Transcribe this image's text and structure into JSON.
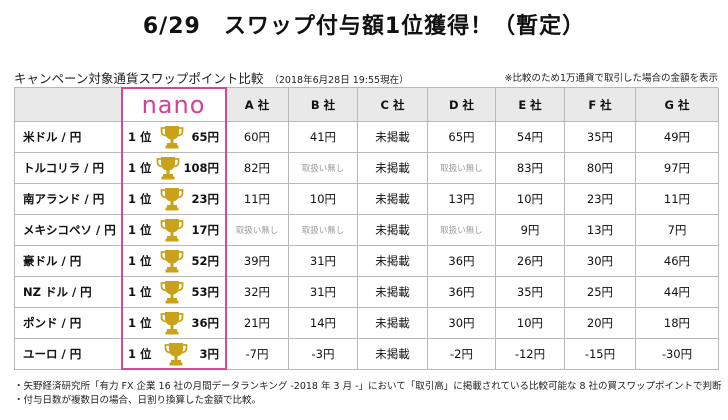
{
  "title": "6/29　スワップ付与額1位獲得！（暫定）",
  "subhead": {
    "main": "キャンペーン対象通貨スワップポイント比較",
    "date": "（2018年6月28日 19:55現在）",
    "note": "※比較のため1万通貨で取引した場合の金額を表示"
  },
  "colors": {
    "nano": "#d4418f",
    "trophy": "#c9a21a",
    "header_bg": "#e9e9e9"
  },
  "table": {
    "nano_label": "nano",
    "rank_label": "1 位",
    "companies": [
      "A 社",
      "B 社",
      "C 社",
      "D 社",
      "E 社",
      "F 社",
      "G 社"
    ],
    "rows": [
      {
        "pair": "米ドル / 円",
        "nano": "65円",
        "values": [
          "60円",
          "41円",
          "未掲載",
          "65円",
          "54円",
          "35円",
          "49円"
        ]
      },
      {
        "pair": "トルコリラ / 円",
        "nano": "108円",
        "values": [
          "82円",
          "取扱い無し",
          "未掲載",
          "取扱い無し",
          "83円",
          "80円",
          "97円"
        ]
      },
      {
        "pair": "南アランド / 円",
        "nano": "23円",
        "values": [
          "11円",
          "10円",
          "未掲載",
          "13円",
          "10円",
          "23円",
          "11円"
        ]
      },
      {
        "pair": "メキシコペソ / 円",
        "nano": "17円",
        "values": [
          "取扱い無し",
          "取扱い無し",
          "未掲載",
          "取扱い無し",
          "9円",
          "13円",
          "7円"
        ]
      },
      {
        "pair": "豪ドル / 円",
        "nano": "52円",
        "values": [
          "39円",
          "31円",
          "未掲載",
          "36円",
          "26円",
          "30円",
          "46円"
        ]
      },
      {
        "pair": "NZ ドル / 円",
        "nano": "53円",
        "values": [
          "32円",
          "31円",
          "未掲載",
          "36円",
          "35円",
          "25円",
          "44円"
        ]
      },
      {
        "pair": "ポンド / 円",
        "nano": "36円",
        "values": [
          "21円",
          "14円",
          "未掲載",
          "30円",
          "10円",
          "20円",
          "18円"
        ]
      },
      {
        "pair": "ユーロ / 円",
        "nano": "3円",
        "values": [
          "-7円",
          "-3円",
          "未掲載",
          "-2円",
          "-12円",
          "-15円",
          "-30円"
        ]
      }
    ]
  },
  "footer": {
    "line1": "・矢野経済研究所「有力 FX 企業 16 社の月間データランキング -2018 年 3 月 -」において「取引高」に掲載されている比較可能な 8 社の買スワップポイントで判断",
    "line2": "・付与日数が複数日の場合、日割り換算した金額で比較。"
  }
}
